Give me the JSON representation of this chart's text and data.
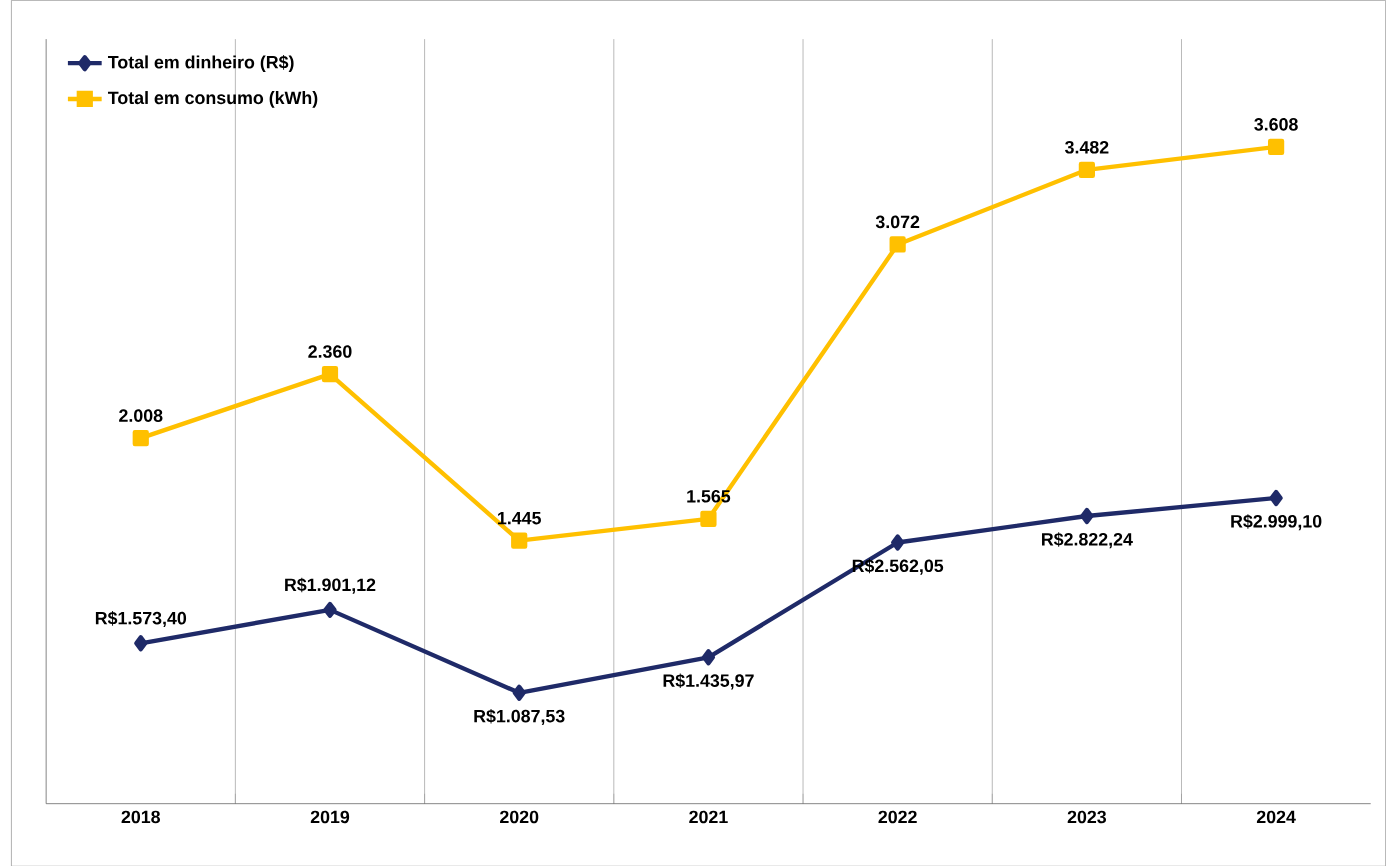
{
  "chart_data": {
    "type": "line",
    "categories": [
      "2018",
      "2019",
      "2020",
      "2021",
      "2022",
      "2023",
      "2024"
    ],
    "series": [
      {
        "name": "Total em dinheiro (R$)",
        "color": "#1f2a68",
        "marker": "diamond",
        "axis": "y2",
        "values": [
          1573.4,
          1901.12,
          1087.53,
          1435.97,
          2562.05,
          2822.24,
          2999.1
        ],
        "value_labels": [
          "R$1.573,40",
          "R$1.901,12",
          "R$1.087,53",
          "R$1.435,97",
          "R$2.562,05",
          "R$2.822,24",
          "R$2.999,10"
        ]
      },
      {
        "name": "Total em consumo (kWh)",
        "color": "#ffc000",
        "marker": "square",
        "values": [
          2008,
          2360,
          1445,
          1565,
          3072,
          3482,
          3608
        ],
        "value_labels": [
          "2.008",
          "2.360",
          "1.445",
          "1.565",
          "3.072",
          "3.482",
          "3.608"
        ]
      }
    ],
    "ylim": [
      0,
      4200
    ],
    "y2lim": [
      0,
      7500
    ],
    "tick_labels": "x",
    "grid": "x",
    "legend": "top left"
  }
}
